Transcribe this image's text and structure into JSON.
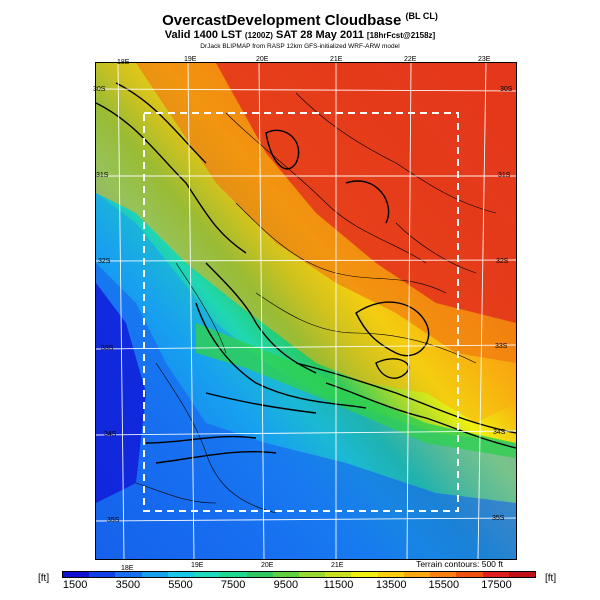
{
  "title": {
    "main": "OvercastDevelopment Cloudbase",
    "main_tag": "(BL CL)",
    "valid": "Valid 1400 LST",
    "valid_utc": "(1200Z)",
    "date": "SAT 28 May 2011",
    "forecast": "[18hrFcst@2158z]",
    "credit": "DrJack BLIPMAP from RASP 12km GFS-initialized WRF-ARW model"
  },
  "map": {
    "lon_labels": [
      "18E",
      "19E",
      "20E",
      "21E",
      "22E",
      "23E"
    ],
    "lon_labels_bottom": [
      "18E",
      "19E",
      "20E",
      "21E"
    ],
    "lat_labels": [
      "30S",
      "31S",
      "32S",
      "33S",
      "34S",
      "35S"
    ],
    "terrain_note": "Terrain contours: 500 ft"
  },
  "legend": {
    "unit": "[ft]",
    "ticks": [
      "1500",
      "3500",
      "5500",
      "7500",
      "9500",
      "11500",
      "13500",
      "15500",
      "17500"
    ],
    "colors": [
      "#1010d0",
      "#1040e8",
      "#1870f0",
      "#18a0f0",
      "#18c8e8",
      "#20d8c0",
      "#20d890",
      "#30c860",
      "#60d040",
      "#98d830",
      "#c8e020",
      "#f0f010",
      "#f8d010",
      "#f8a810",
      "#f88010",
      "#f05010",
      "#e02020",
      "#c01018"
    ]
  },
  "chart_data": {
    "type": "heatmap",
    "title": "OvercastDevelopment Cloudbase",
    "variable": "Cloudbase",
    "unit": "ft",
    "value_range": [
      1500,
      17500
    ],
    "contour_interval_ft": 500
  }
}
